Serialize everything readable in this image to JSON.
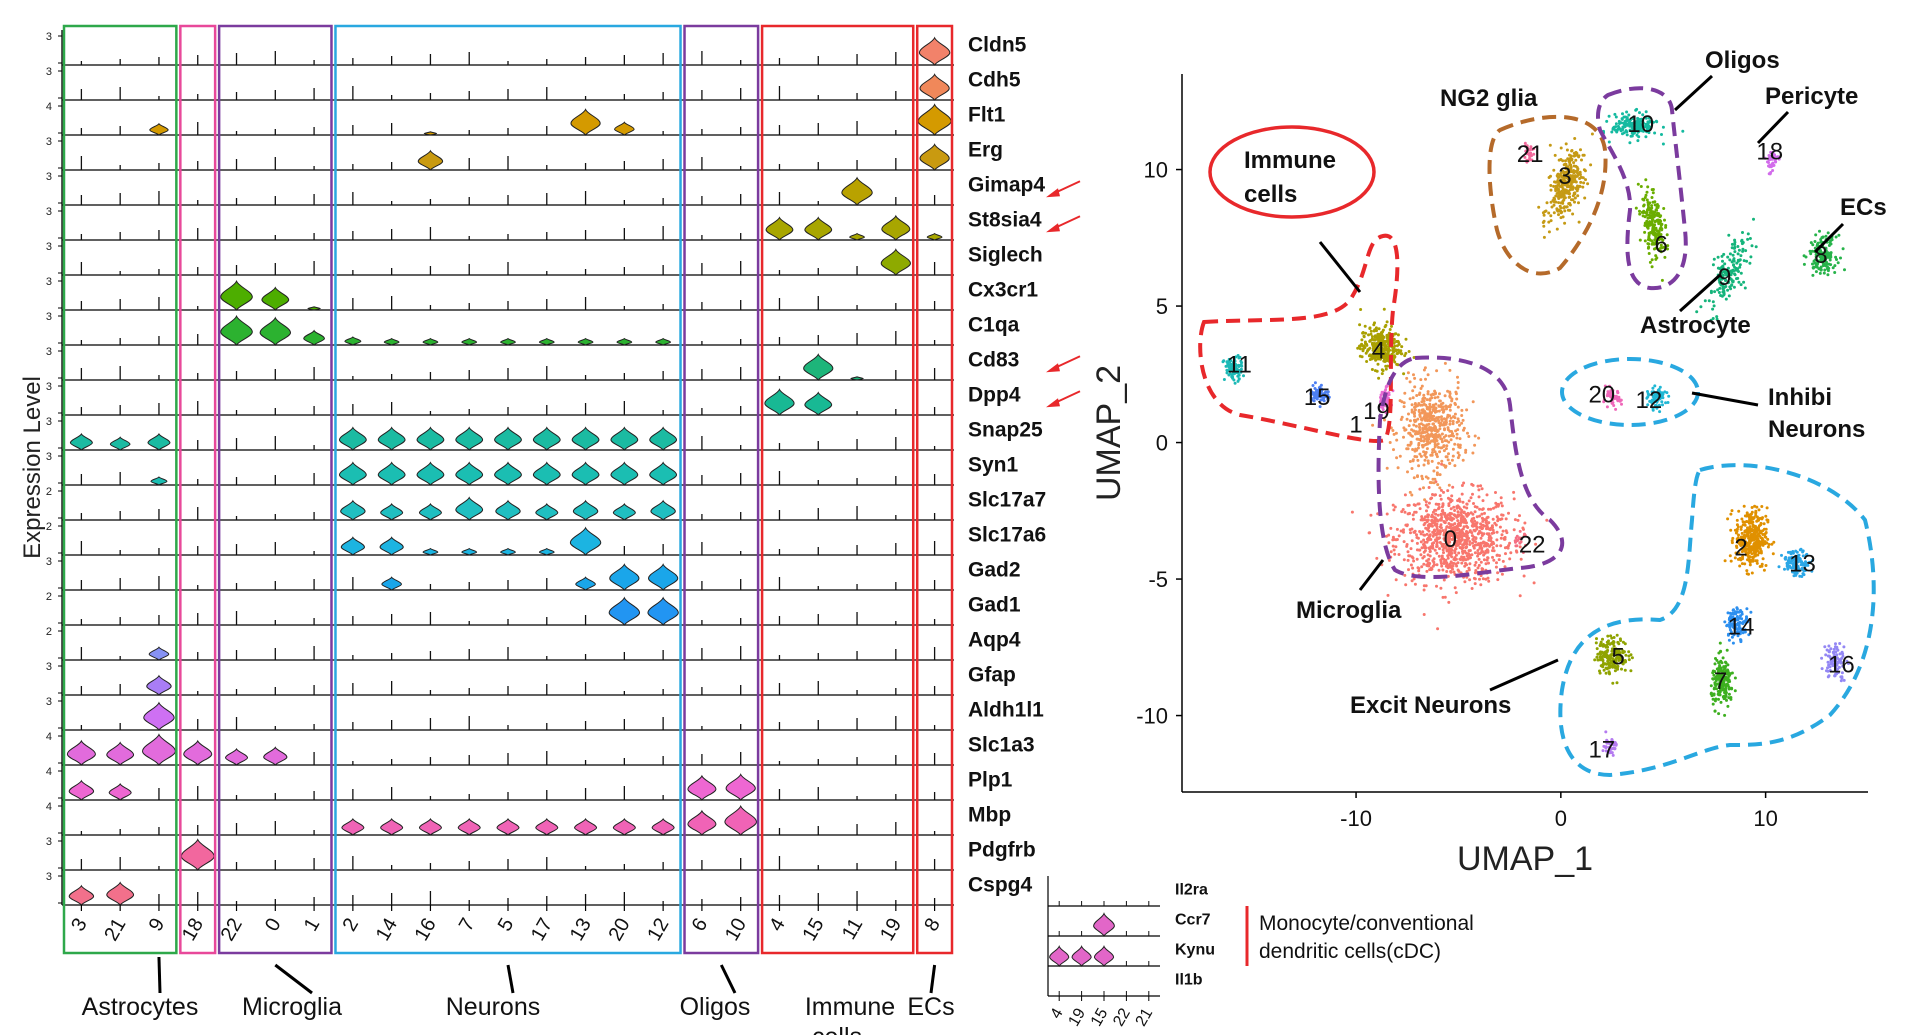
{
  "chart_data": [
    {
      "type": "violin",
      "title": "",
      "ylabel": "Expression Level",
      "clusters": [
        "3",
        "21",
        "9",
        "18",
        "22",
        "0",
        "1",
        "2",
        "14",
        "16",
        "7",
        "5",
        "17",
        "13",
        "20",
        "12",
        "6",
        "10",
        "4",
        "15",
        "11",
        "19",
        "8"
      ],
      "genes": [
        "Cldn5",
        "Cdh5",
        "Flt1",
        "Erg",
        "Gimap4",
        "St8sia4",
        "Siglech",
        "Cx3cr1",
        "C1qa",
        "Cd83",
        "Dpp4",
        "Snap25",
        "Syn1",
        "Slc17a7",
        "Slc17a6",
        "Gad2",
        "Gad1",
        "Aqp4",
        "Gfap",
        "Aldh1l1",
        "Slc1a3",
        "Plp1",
        "Mbp",
        "Pdgfrb",
        "Cspg4"
      ],
      "ymax_ticks": [
        "3",
        "3",
        "4",
        "3",
        "3",
        "3",
        "3",
        "3",
        "3",
        "3",
        "3",
        "3",
        "3",
        "2",
        "2",
        "3",
        "2",
        "2",
        "3",
        "3",
        "4",
        "4",
        "4",
        "3",
        "3"
      ],
      "gene_colors": [
        "#F2826A",
        "#F0885A",
        "#D49A00",
        "#C99A10",
        "#B9A200",
        "#A8A600",
        "#8EAA00",
        "#4DAE00",
        "#2CB230",
        "#1DB57A",
        "#18B994",
        "#1BBBA2",
        "#1BBEB2",
        "#20BFC1",
        "#1CB4E1",
        "#1AA6EA",
        "#2295F2",
        "#8792F5",
        "#A97DF6",
        "#CE70F3",
        "#E26BDC",
        "#EE67D2",
        "#F063B6",
        "#F2679E",
        "#F2708B"
      ],
      "expression": {
        "Cldn5": {
          "8": 0.85
        },
        "Cdh5": {
          "8": 0.8
        },
        "Flt1": {
          "9": 0.35,
          "16": 0.1,
          "13": 0.8,
          "20": 0.4,
          "8": 0.95
        },
        "Erg": {
          "16": 0.6,
          "8": 0.8
        },
        "Gimap4": {
          "11": 0.85
        },
        "St8sia4": {
          "4": 0.7,
          "15": 0.7,
          "11": 0.2,
          "19": 0.75,
          "8": 0.2
        },
        "Siglech": {
          "19": 0.8
        },
        "Cx3cr1": {
          "22": 0.9,
          "0": 0.7,
          "1": 0.1
        },
        "C1qa": {
          "22": 0.9,
          "0": 0.85,
          "1": 0.45,
          "2": 0.25,
          "14": 0.2,
          "16": 0.2,
          "7": 0.2,
          "5": 0.2,
          "17": 0.2,
          "13": 0.2,
          "20": 0.2,
          "12": 0.2
        },
        "Cd83": {
          "15": 0.8,
          "11": 0.1
        },
        "Dpp4": {
          "4": 0.8,
          "15": 0.7
        },
        "Snap25": {
          "3": 0.5,
          "21": 0.4,
          "9": 0.5,
          "2": 0.7,
          "14": 0.7,
          "16": 0.7,
          "7": 0.7,
          "5": 0.7,
          "17": 0.7,
          "13": 0.7,
          "20": 0.7,
          "12": 0.7
        },
        "Syn1": {
          "9": 0.25,
          "2": 0.7,
          "14": 0.7,
          "16": 0.7,
          "7": 0.7,
          "5": 0.7,
          "17": 0.7,
          "13": 0.7,
          "20": 0.7,
          "12": 0.7
        },
        "Slc17a7": {
          "2": 0.6,
          "14": 0.5,
          "16": 0.5,
          "7": 0.7,
          "5": 0.6,
          "17": 0.5,
          "13": 0.6,
          "20": 0.5,
          "12": 0.6
        },
        "Slc17a6": {
          "2": 0.55,
          "14": 0.55,
          "16": 0.2,
          "7": 0.2,
          "5": 0.2,
          "17": 0.2,
          "13": 0.85
        },
        "Gad2": {
          "14": 0.4,
          "13": 0.4,
          "20": 0.8,
          "12": 0.8
        },
        "Gad1": {
          "20": 0.85,
          "12": 0.85
        },
        "Aqp4": {
          "9": 0.4
        },
        "Gfap": {
          "9": 0.6
        },
        "Aldh1l1": {
          "9": 0.85
        },
        "Slc1a3": {
          "3": 0.75,
          "21": 0.7,
          "9": 0.95,
          "18": 0.75,
          "22": 0.5,
          "0": 0.55
        },
        "Plp1": {
          "3": 0.6,
          "21": 0.5,
          "6": 0.75,
          "10": 0.8
        },
        "Mbp": {
          "6": 0.75,
          "10": 0.9,
          "2": 0.5,
          "14": 0.5,
          "16": 0.5,
          "7": 0.5,
          "5": 0.5,
          "17": 0.5,
          "13": 0.5,
          "20": 0.5,
          "12": 0.5
        },
        "Pdgfrb": {
          "18": 0.95
        },
        "Cspg4": {
          "3": 0.6,
          "21": 0.7
        }
      },
      "groups": [
        {
          "name": "Astrocytes",
          "clusters": [
            "3",
            "21",
            "9"
          ],
          "box_color": "#2EA84A",
          "text_color": "#111111"
        },
        {
          "name": "",
          "clusters": [
            "18"
          ],
          "box_color": "#E8489A",
          "text_color": "#111111"
        },
        {
          "name": "Microglia",
          "clusters": [
            "22",
            "0",
            "1"
          ],
          "box_color": "#7B3B9E",
          "text_color": "#111111"
        },
        {
          "name": "Neurons",
          "clusters": [
            "2",
            "14",
            "16",
            "7",
            "5",
            "17",
            "13",
            "20",
            "12"
          ],
          "box_color": "#29A8E0",
          "text_color": "#111111"
        },
        {
          "name": "Oligos",
          "clusters": [
            "6",
            "10"
          ],
          "box_color": "#7B3B9E",
          "text_color": "#111111"
        },
        {
          "name": "Immune cells",
          "clusters": [
            "4",
            "15",
            "11",
            "19"
          ],
          "box_color": "#E8282B",
          "text_color": "#E8282B"
        },
        {
          "name": "ECs",
          "clusters": [
            "8"
          ],
          "box_color": "#E8282B",
          "text_color": "#111111"
        }
      ],
      "highlighted_genes": [
        "Gimap4",
        "St8sia4",
        "Cd83",
        "Dpp4"
      ]
    },
    {
      "type": "scatter",
      "xlabel": "UMAP_1",
      "ylabel": "UMAP_2",
      "xlim": [
        -18.5,
        15
      ],
      "ylim": [
        -12.8,
        13.5
      ],
      "xticks": [
        "-10",
        "0",
        "10"
      ],
      "yticks": [
        "10",
        "5",
        "0",
        "-5",
        "-10"
      ],
      "xtick_values": [
        -10,
        0,
        10
      ],
      "ytick_values": [
        10,
        5,
        0,
        -5,
        -10
      ],
      "clusters": [
        {
          "id": "0",
          "x": -5.2,
          "y": -3.5,
          "sx": 2.6,
          "sy": 1.5,
          "n": 900,
          "color": "#F8766D"
        },
        {
          "id": "1",
          "x": -6.3,
          "y": 0.5,
          "sx": 1.4,
          "sy": 1.5,
          "n": 500,
          "color": "#F2975A"
        },
        {
          "id": "2",
          "x": 9.3,
          "y": -3.5,
          "sx": 0.7,
          "sy": 1.0,
          "n": 350,
          "color": "#E09000"
        },
        {
          "id": "3",
          "x": 0.3,
          "y": 9.5,
          "sx": 0.7,
          "sy": 1.2,
          "n": 300,
          "color": "#C59A15"
        },
        {
          "id": "4",
          "x": -8.8,
          "y": 3.5,
          "sx": 0.9,
          "sy": 0.7,
          "n": 300,
          "color": "#A9A000"
        },
        {
          "id": "5",
          "x": 2.5,
          "y": -7.8,
          "sx": 0.7,
          "sy": 0.6,
          "n": 200,
          "color": "#8FA300"
        },
        {
          "id": "6",
          "x": 4.5,
          "y": 8.0,
          "sx": 0.45,
          "sy": 1.2,
          "n": 200,
          "color": "#6AAD00"
        },
        {
          "id": "7",
          "x": 7.9,
          "y": -8.8,
          "sx": 0.5,
          "sy": 0.8,
          "n": 180,
          "color": "#3DAF1F"
        },
        {
          "id": "8",
          "x": 12.8,
          "y": 6.9,
          "sx": 0.6,
          "sy": 0.6,
          "n": 150,
          "color": "#27B34A"
        },
        {
          "id": "9",
          "x": 8.2,
          "y": 6.2,
          "sx": 0.7,
          "sy": 1.3,
          "n": 160,
          "color": "#15B47B"
        },
        {
          "id": "10",
          "x": 3.6,
          "y": 11.6,
          "sx": 1.0,
          "sy": 0.4,
          "n": 180,
          "color": "#14BAA0"
        },
        {
          "id": "11",
          "x": -16.0,
          "y": 2.7,
          "sx": 0.4,
          "sy": 0.4,
          "n": 90,
          "color": "#1CB9B6"
        },
        {
          "id": "12",
          "x": 4.7,
          "y": 1.6,
          "sx": 0.4,
          "sy": 0.35,
          "n": 80,
          "color": "#20B7D4"
        },
        {
          "id": "13",
          "x": 11.5,
          "y": -4.4,
          "sx": 0.6,
          "sy": 0.4,
          "n": 120,
          "color": "#2AA6E6"
        },
        {
          "id": "14",
          "x": 8.6,
          "y": -6.6,
          "sx": 0.5,
          "sy": 0.5,
          "n": 110,
          "color": "#2C8FEF"
        },
        {
          "id": "15",
          "x": -11.8,
          "y": 1.8,
          "sx": 0.4,
          "sy": 0.3,
          "n": 70,
          "color": "#4D7FF2"
        },
        {
          "id": "16",
          "x": 13.4,
          "y": -8.0,
          "sx": 0.5,
          "sy": 0.6,
          "n": 90,
          "color": "#9387F4"
        },
        {
          "id": "17",
          "x": 2.4,
          "y": -11.1,
          "sx": 0.3,
          "sy": 0.3,
          "n": 40,
          "color": "#B47BF0"
        },
        {
          "id": "18",
          "x": 10.3,
          "y": 10.3,
          "sx": 0.3,
          "sy": 0.4,
          "n": 40,
          "color": "#D26CEB"
        },
        {
          "id": "19",
          "x": -8.6,
          "y": 1.6,
          "sx": 0.3,
          "sy": 0.4,
          "n": 50,
          "color": "#E76AD2"
        },
        {
          "id": "20",
          "x": 2.5,
          "y": 1.6,
          "sx": 0.4,
          "sy": 0.3,
          "n": 45,
          "color": "#EF67B9"
        },
        {
          "id": "21",
          "x": -1.6,
          "y": 10.6,
          "sx": 0.25,
          "sy": 0.25,
          "n": 30,
          "color": "#F2689B"
        },
        {
          "id": "22",
          "x": -2.0,
          "y": -3.6,
          "sx": 0.3,
          "sy": 0.3,
          "n": 20,
          "color": "#F56F83"
        }
      ],
      "label_positions": {
        "0": [
          -5.4,
          -3.5
        ],
        "1": [
          -10,
          0.7
        ],
        "2": [
          8.8,
          -3.8
        ],
        "3": [
          0.2,
          9.8
        ],
        "4": [
          -8.9,
          3.4
        ],
        "5": [
          2.8,
          -7.8
        ],
        "6": [
          4.9,
          7.3
        ],
        "7": [
          7.8,
          -8.7
        ],
        "8": [
          12.7,
          6.9
        ],
        "9": [
          8.0,
          6.1
        ],
        "10": [
          3.9,
          11.7
        ],
        "11": [
          -15.7,
          2.9
        ],
        "12": [
          4.3,
          1.6
        ],
        "13": [
          11.8,
          -4.4
        ],
        "14": [
          8.8,
          -6.7
        ],
        "15": [
          -11.9,
          1.7
        ],
        "16": [
          13.7,
          -8.1
        ],
        "17": [
          2.0,
          -11.2
        ],
        "18": [
          10.2,
          10.7
        ],
        "19": [
          -9.0,
          1.2
        ],
        "20": [
          2.0,
          1.8
        ],
        "21": [
          -1.5,
          10.6
        ],
        "22": [
          -1.4,
          -3.7
        ]
      },
      "annotations": [
        {
          "text": "Oligos",
          "bold": true
        },
        {
          "text": "NG2 glia",
          "bold": true
        },
        {
          "text": "Pericyte",
          "bold": true
        },
        {
          "text": "Immune",
          "bold": true
        },
        {
          "text": "cells",
          "bold": true
        },
        {
          "text": "ECs",
          "bold": true
        },
        {
          "text": "Astrocyte",
          "bold": true
        },
        {
          "text": "Inhibi",
          "bold": true
        },
        {
          "text": "Neurons",
          "bold": true
        },
        {
          "text": "Microglia",
          "bold": true
        },
        {
          "text": "Excit Neurons",
          "bold": true
        }
      ],
      "outline_colors": {
        "immune": "#E8282B",
        "microglia": "#7B3B9E",
        "ng2": "#B56A2A",
        "oligos": "#7B3B9E",
        "inhib": "#29A8E0",
        "excit": "#29A8E0"
      }
    },
    {
      "type": "violin",
      "clusters": [
        "4",
        "19",
        "15",
        "22",
        "21"
      ],
      "genes": [
        "Il2ra",
        "Ccr7",
        "Kynu",
        "Il1b"
      ],
      "expression": {
        "Ccr7": {
          "15": 0.8
        },
        "Kynu": {
          "4": 0.7,
          "19": 0.7,
          "15": 0.7
        }
      },
      "violin_color": "#E266C8",
      "side_label_lines": [
        "Monocyte/conventional",
        "dendritic cells(cDC)"
      ],
      "bracket_color": "#E8282B"
    }
  ]
}
